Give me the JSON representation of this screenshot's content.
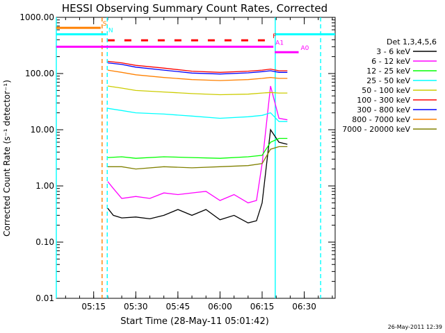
{
  "chart_data": {
    "type": "line",
    "title": "HESSI Observing Summary Count Rates, Corrected",
    "xlabel": "Start Time (28-May-11 05:01:42)",
    "ylabel": "Corrected Count Rate (s⁻¹ detector⁻¹)",
    "y_scale": "log",
    "ylim": [
      0.01,
      1000
    ],
    "xlim": [
      "05:01:42",
      "06:41:00"
    ],
    "x_ticks": [
      "05:15",
      "05:30",
      "05:45",
      "06:00",
      "06:15",
      "06:30"
    ],
    "y_ticks": [
      "0.01",
      "0.10",
      "1.00",
      "10.00",
      "100.00",
      "1000.00"
    ],
    "legend_title": "Det 1,3,4,5,6",
    "series": [
      {
        "name": "3 - 6 keV",
        "color": "#000000",
        "x": [
          "05:20",
          "05:22",
          "05:25",
          "05:30",
          "05:35",
          "05:40",
          "05:45",
          "05:50",
          "05:55",
          "06:00",
          "06:05",
          "06:10",
          "06:13",
          "06:15",
          "06:18",
          "06:21",
          "06:24"
        ],
        "values": [
          0.4,
          0.3,
          0.27,
          0.28,
          0.26,
          0.3,
          0.38,
          0.3,
          0.38,
          0.25,
          0.3,
          0.22,
          0.24,
          0.5,
          10,
          6,
          5.5
        ]
      },
      {
        "name": "6 - 12 keV",
        "color": "#ff00ff",
        "x": [
          "05:20",
          "05:22",
          "05:25",
          "05:30",
          "05:35",
          "05:40",
          "05:45",
          "05:50",
          "05:55",
          "06:00",
          "06:05",
          "06:10",
          "06:13",
          "06:15",
          "06:18",
          "06:21",
          "06:24"
        ],
        "values": [
          1.2,
          0.9,
          0.6,
          0.65,
          0.6,
          0.75,
          0.7,
          0.75,
          0.8,
          0.55,
          0.7,
          0.5,
          0.55,
          2.5,
          60,
          16,
          15
        ]
      },
      {
        "name": "12 - 25 keV",
        "color": "#00ff00",
        "x": [
          "05:20",
          "05:25",
          "05:30",
          "05:40",
          "05:50",
          "06:00",
          "06:10",
          "06:15",
          "06:18",
          "06:21",
          "06:24"
        ],
        "values": [
          3.2,
          3.3,
          3.1,
          3.3,
          3.2,
          3.1,
          3.3,
          3.5,
          6,
          7,
          7
        ]
      },
      {
        "name": "25 - 50 keV",
        "color": "#00ffff",
        "x": [
          "05:20",
          "05:25",
          "05:30",
          "05:40",
          "05:50",
          "06:00",
          "06:10",
          "06:15",
          "06:18",
          "06:21",
          "06:24"
        ],
        "values": [
          24,
          22,
          20,
          19,
          17.5,
          16,
          17,
          18,
          20,
          14,
          14
        ]
      },
      {
        "name": "50 - 100 keV",
        "color": "#cccc00",
        "x": [
          "05:20",
          "05:25",
          "05:30",
          "05:40",
          "05:50",
          "06:00",
          "06:10",
          "06:15",
          "06:18",
          "06:21",
          "06:24"
        ],
        "values": [
          60,
          55,
          50,
          47,
          44,
          42,
          43,
          45,
          46,
          45,
          45
        ]
      },
      {
        "name": "100 - 300 keV",
        "color": "#ff0000",
        "x": [
          "05:20",
          "05:25",
          "05:30",
          "05:40",
          "05:50",
          "06:00",
          "06:10",
          "06:15",
          "06:18",
          "06:21",
          "06:24"
        ],
        "values": [
          165,
          155,
          140,
          125,
          110,
          105,
          110,
          115,
          120,
          112,
          112
        ]
      },
      {
        "name": "300 - 800 keV",
        "color": "#0000ff",
        "x": [
          "05:20",
          "05:25",
          "05:30",
          "05:40",
          "05:50",
          "06:00",
          "06:10",
          "06:15",
          "06:18",
          "06:21",
          "06:24"
        ],
        "values": [
          155,
          145,
          130,
          115,
          102,
          98,
          103,
          108,
          112,
          105,
          105
        ]
      },
      {
        "name": "800 - 7000 keV",
        "color": "#ff8000",
        "x": [
          "05:20",
          "05:25",
          "05:30",
          "05:40",
          "05:50",
          "06:00",
          "06:10",
          "06:15",
          "06:18",
          "06:21",
          "06:24"
        ],
        "values": [
          115,
          105,
          95,
          85,
          78,
          75,
          78,
          82,
          85,
          82,
          82
        ]
      },
      {
        "name": "7000 - 20000 keV",
        "color": "#808000",
        "x": [
          "05:20",
          "05:25",
          "05:30",
          "05:40",
          "05:50",
          "06:00",
          "06:10",
          "06:15",
          "06:18",
          "06:21",
          "06:24"
        ],
        "values": [
          2.2,
          2.2,
          2.0,
          2.2,
          2.1,
          2.2,
          2.3,
          2.5,
          4.5,
          5,
          5
        ]
      }
    ],
    "flag_bars": [
      {
        "label": "S",
        "color": "#ff8000",
        "value": 650,
        "x_start": "05:01:42",
        "x_end": "05:17:30"
      },
      {
        "label": "N",
        "color": "#00ffff",
        "value": 500,
        "x_start": "05:01:42",
        "x_end": "05:19:30"
      },
      {
        "label": "",
        "color": "#00ffff",
        "value": 500,
        "x_start": "06:19:30",
        "x_end": "06:41:00"
      },
      {
        "label": "F",
        "color": "#ff0000",
        "value": 390,
        "x_start": "05:20:00",
        "x_end": "06:18:00",
        "dashed": true
      },
      {
        "label": "A1",
        "color": "#ff00ff",
        "value": 300,
        "x_start": "05:01:42",
        "x_end": "06:19:00"
      },
      {
        "label": "A0",
        "color": "#ff00ff",
        "value": 240,
        "x_start": "06:19:30",
        "x_end": "06:28:00"
      }
    ],
    "vertical_markers": [
      {
        "x": "05:18:00",
        "color": "#ff8000",
        "style": "dashed"
      },
      {
        "x": "05:19:50",
        "color": "#00ffff",
        "style": "dashed"
      },
      {
        "x": "06:19:40",
        "color": "#00ffff",
        "style": "solid"
      },
      {
        "x": "06:35:50",
        "color": "#00ffff",
        "style": "dashed"
      },
      {
        "x": "05:01:42",
        "color": "#00ffff",
        "style": "solid"
      }
    ]
  },
  "footer": {
    "timestamp": "26-May-2011 12:39"
  }
}
